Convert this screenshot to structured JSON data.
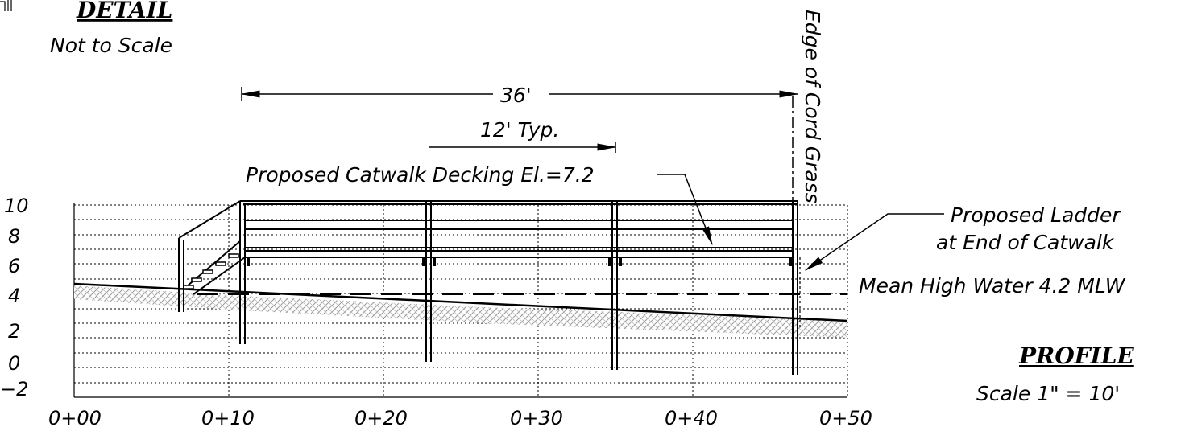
{
  "detail": {
    "title": "DETAIL",
    "note": "Not to Scale"
  },
  "profile": {
    "title": "PROFILE",
    "scale": "Scale 1\" = 10'"
  },
  "dimensions": {
    "overall": "36'",
    "typical": "12' Typ."
  },
  "annotations": {
    "decking": "Proposed Catwalk Decking El.=7.2",
    "ladder_line1": "Proposed Ladder",
    "ladder_line2": "at End of Catwalk",
    "mean_high_water": "Mean High Water 4.2 MLW",
    "edge_label": "Edge of Cord Grass"
  },
  "axes": {
    "y_ticks": [
      "10",
      "8",
      "6",
      "4",
      "2",
      "0",
      "−2"
    ],
    "x_ticks": [
      "0+00",
      "0+10",
      "0+20",
      "0+30",
      "0+40",
      "0+50"
    ]
  },
  "colors": {
    "line": "#000000",
    "grid": "#000000",
    "hatch": "#9a9a9a"
  }
}
